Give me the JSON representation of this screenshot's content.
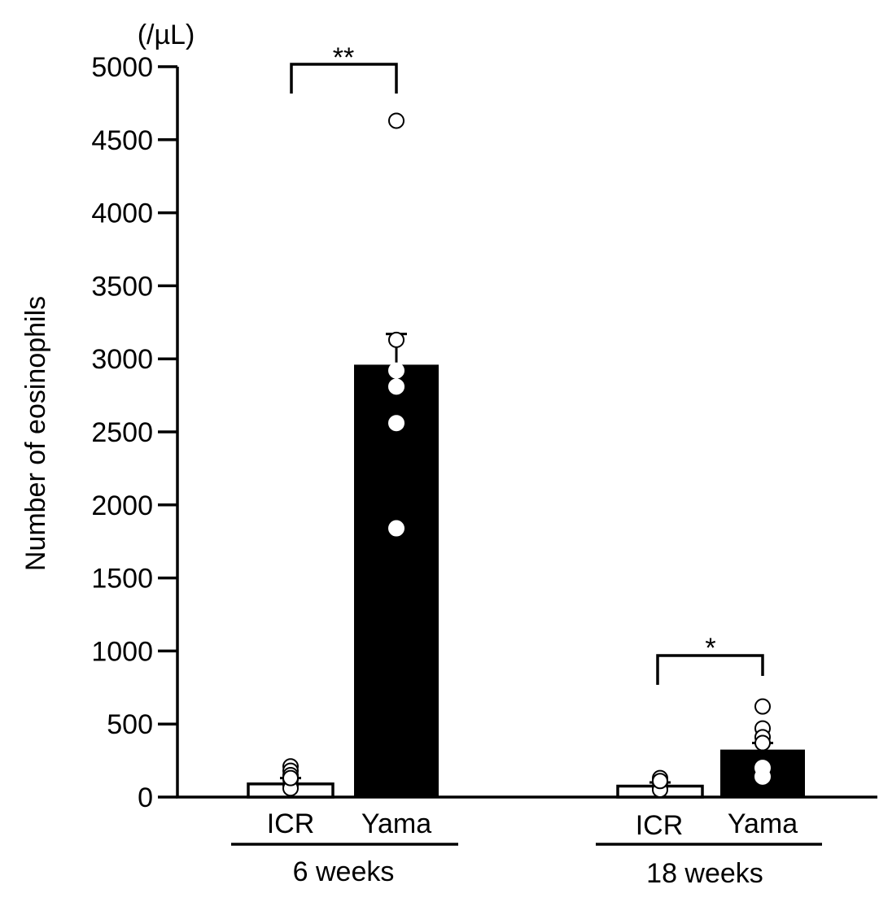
{
  "chart_data": {
    "type": "bar",
    "ylabel": "Number of eosinophils",
    "unit_label": "(/µL)",
    "ylim": [
      0,
      5000
    ],
    "yticks": [
      0,
      500,
      1000,
      1500,
      2000,
      2500,
      3000,
      3500,
      4000,
      4500,
      5000
    ],
    "colors": {
      "ICR": "#ffffff",
      "Yama": "#000000",
      "axis": "#000000"
    },
    "groups": [
      {
        "label": "6 weeks",
        "significance": "**",
        "bars": [
          {
            "category": "ICR",
            "mean": 90,
            "error": 40,
            "points": [
              210,
              180,
              150,
              120,
              80,
              60,
              130
            ]
          },
          {
            "category": "Yama",
            "mean": 2960,
            "error": 210,
            "points": [
              4630,
              3130,
              2920,
              2810,
              2560,
              1840
            ]
          }
        ]
      },
      {
        "label": "18 weeks",
        "significance": "*",
        "bars": [
          {
            "category": "ICR",
            "mean": 75,
            "error": 25,
            "points": [
              130,
              100,
              70,
              50,
              110
            ]
          },
          {
            "category": "Yama",
            "mean": 325,
            "error": 45,
            "points": [
              620,
              470,
              410,
              370,
              200,
              140
            ]
          }
        ]
      }
    ]
  }
}
